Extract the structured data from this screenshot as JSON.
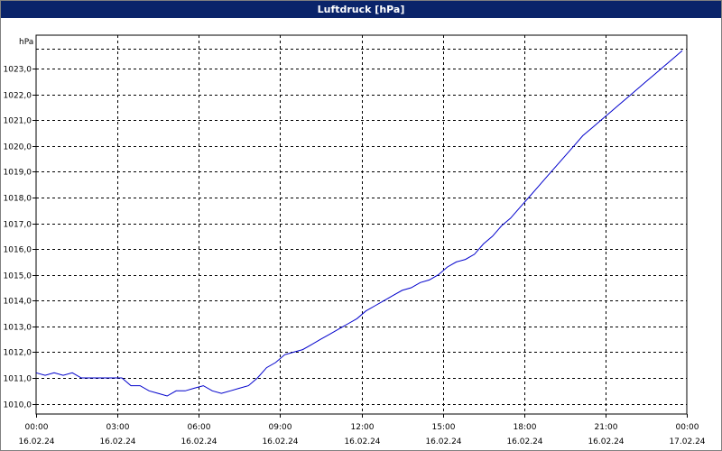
{
  "window": {
    "title": "Luftdruck [hPa]"
  },
  "chart_data": {
    "type": "line",
    "title": "Luftdruck [hPa]",
    "ylabel": "hPa",
    "xlabel": "",
    "grid": true,
    "xlim": [
      "16.02.24 00:00",
      "17.02.24 00:00"
    ],
    "ylim": [
      1009.6,
      1024.3
    ],
    "x_ticks": [
      {
        "time": "00:00",
        "date": "16.02.24"
      },
      {
        "time": "03:00",
        "date": "16.02.24"
      },
      {
        "time": "06:00",
        "date": "16.02.24"
      },
      {
        "time": "09:00",
        "date": "16.02.24"
      },
      {
        "time": "12:00",
        "date": "16.02.24"
      },
      {
        "time": "15:00",
        "date": "16.02.24"
      },
      {
        "time": "18:00",
        "date": "16.02.24"
      },
      {
        "time": "21:00",
        "date": "16.02.24"
      },
      {
        "time": "00:00",
        "date": "17.02.24"
      }
    ],
    "y_ticks": [
      "1010,0",
      "1011,0",
      "1012,0",
      "1013,0",
      "1014,0",
      "1015,0",
      "1016,0",
      "1017,0",
      "1018,0",
      "1019,0",
      "1020,0",
      "1021,0",
      "1022,0",
      "1023,0"
    ],
    "series": [
      {
        "color": "#0000cc",
        "x": [
          "00:00",
          "00:20",
          "00:40",
          "01:00",
          "01:20",
          "01:40",
          "02:00",
          "02:20",
          "02:40",
          "03:00",
          "03:10",
          "03:30",
          "03:50",
          "04:10",
          "04:30",
          "04:50",
          "05:10",
          "05:30",
          "05:50",
          "06:10",
          "06:30",
          "06:50",
          "07:10",
          "07:30",
          "07:50",
          "08:10",
          "08:30",
          "08:50",
          "09:10",
          "09:30",
          "09:50",
          "10:10",
          "10:30",
          "10:50",
          "11:10",
          "11:30",
          "11:50",
          "12:10",
          "12:30",
          "12:50",
          "13:10",
          "13:30",
          "13:50",
          "14:10",
          "14:30",
          "14:50",
          "15:10",
          "15:30",
          "15:50",
          "16:10",
          "16:30",
          "16:50",
          "17:10",
          "17:30",
          "17:50",
          "18:10",
          "18:30",
          "18:50",
          "19:10",
          "19:30",
          "19:50",
          "20:10",
          "20:30",
          "20:50",
          "21:10",
          "21:30",
          "21:50",
          "22:10",
          "22:30",
          "22:50",
          "23:10",
          "23:30",
          "23:50"
        ],
        "y": [
          1011.2,
          1011.1,
          1011.2,
          1011.1,
          1011.2,
          1011.0,
          1011.0,
          1011.0,
          1011.0,
          1011.0,
          1011.0,
          1010.7,
          1010.7,
          1010.5,
          1010.4,
          1010.3,
          1010.5,
          1010.5,
          1010.6,
          1010.7,
          1010.5,
          1010.4,
          1010.5,
          1010.6,
          1010.7,
          1011.0,
          1011.4,
          1011.6,
          1011.9,
          1012.0,
          1012.1,
          1012.3,
          1012.5,
          1012.7,
          1012.9,
          1013.1,
          1013.3,
          1013.6,
          1013.8,
          1014.0,
          1014.2,
          1014.4,
          1014.5,
          1014.7,
          1014.8,
          1015.0,
          1015.3,
          1015.5,
          1015.6,
          1015.8,
          1016.2,
          1016.5,
          1016.9,
          1017.2,
          1017.6,
          1018.0,
          1018.4,
          1018.8,
          1019.2,
          1019.6,
          1020.0,
          1020.4,
          1020.7,
          1021.0,
          1021.3,
          1021.6,
          1021.9,
          1022.2,
          1022.5,
          1022.8,
          1023.1,
          1023.4,
          1023.7
        ]
      }
    ]
  }
}
